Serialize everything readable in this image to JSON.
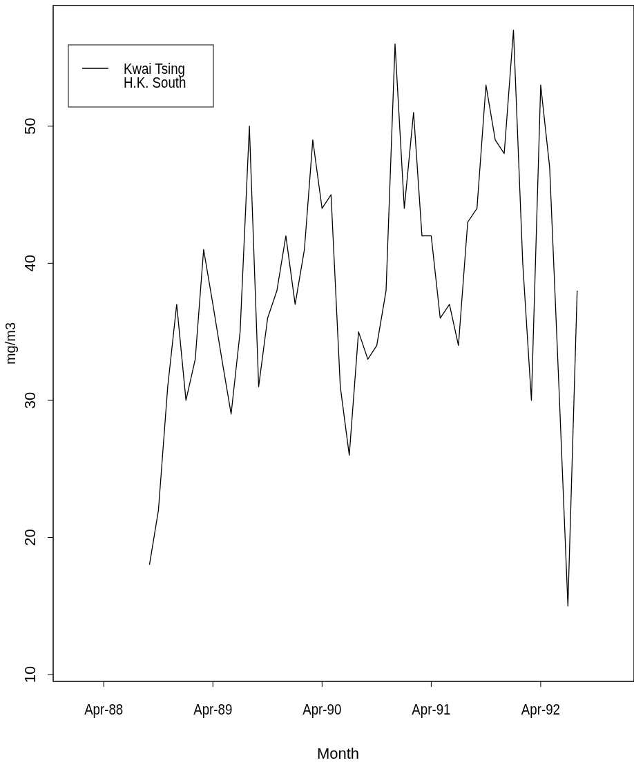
{
  "chart_data": {
    "type": "line",
    "xlabel": "Month",
    "ylabel": "mg/m3",
    "x": [
      "1988-09",
      "1988-10",
      "1988-11",
      "1988-12",
      "1989-01",
      "1989-02",
      "1989-03",
      "1989-04",
      "1989-05",
      "1989-06",
      "1989-07",
      "1989-08",
      "1989-09",
      "1989-10",
      "1989-11",
      "1989-12",
      "1990-01",
      "1990-02",
      "1990-03",
      "1990-04",
      "1990-05",
      "1990-06",
      "1990-07",
      "1990-08",
      "1990-09",
      "1990-10",
      "1990-11",
      "1990-12",
      "1991-01",
      "1991-02",
      "1991-03",
      "1991-04",
      "1991-05",
      "1991-06",
      "1991-07",
      "1991-08",
      "1991-09",
      "1991-10",
      "1991-11",
      "1991-12",
      "1992-01",
      "1992-02",
      "1992-03",
      "1992-04",
      "1992-05",
      "1992-06",
      "1992-07",
      "1992-08"
    ],
    "series": [
      {
        "name": "Kwai Tsing",
        "color": "#000000",
        "values": [
          18,
          22,
          31,
          37,
          30,
          33,
          41,
          37,
          33,
          29,
          35,
          50,
          31,
          36,
          38,
          42,
          37,
          41,
          49,
          44,
          45,
          31,
          26,
          35,
          33,
          34,
          38,
          56,
          44,
          51,
          42,
          42,
          36,
          37,
          34,
          43,
          44,
          53,
          49,
          48,
          57,
          40,
          30,
          53,
          47,
          31,
          15,
          38
        ]
      },
      {
        "name": "H.K. South",
        "values": [
          null,
          null,
          null,
          null,
          null,
          null,
          null,
          null,
          null,
          null,
          null,
          null,
          null,
          null,
          null,
          null,
          null,
          null,
          null,
          null,
          null,
          null,
          null,
          null,
          null,
          null,
          null,
          null,
          null,
          null,
          null,
          null,
          null,
          null,
          null,
          null,
          null,
          null,
          null,
          null,
          null,
          null,
          null,
          null,
          null,
          null,
          null,
          null
        ]
      }
    ],
    "xlim": [
      "1987-10-15",
      "1993-02-07"
    ],
    "xticks": [
      {
        "value": "1988-04",
        "label": "Apr-88"
      },
      {
        "value": "1989-04",
        "label": "Apr-89"
      },
      {
        "value": "1990-04",
        "label": "Apr-90"
      },
      {
        "value": "1991-04",
        "label": "Apr-91"
      },
      {
        "value": "1992-04",
        "label": "Apr-92"
      }
    ],
    "ylim": [
      9.5,
      58.8
    ],
    "yticks": [
      10,
      20,
      30,
      40,
      50
    ],
    "legend": "top left",
    "marker": "none",
    "line_style": "solid",
    "grid": false
  }
}
